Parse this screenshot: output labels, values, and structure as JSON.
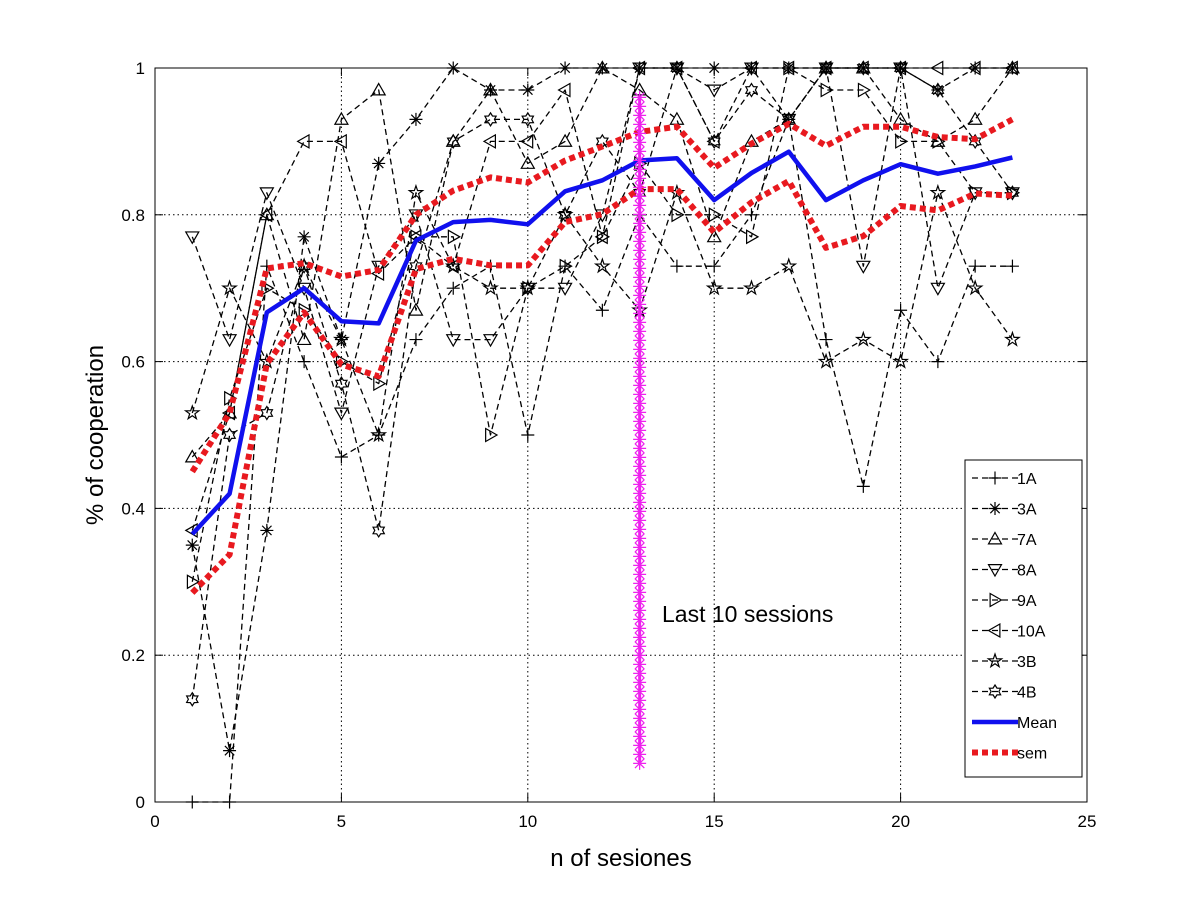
{
  "chart_data": {
    "type": "line",
    "title": "",
    "xlabel": "n of sesiones",
    "ylabel": "% of cooperation",
    "xlim": [
      0,
      25
    ],
    "ylim": [
      0,
      1
    ],
    "xticks": [
      0,
      5,
      10,
      15,
      20,
      25
    ],
    "yticks": [
      0,
      0.2,
      0.4,
      0.6,
      0.8,
      1
    ],
    "xtick_labels": [
      "0",
      "5",
      "10",
      "15",
      "20",
      "25"
    ],
    "ytick_labels": [
      "0",
      "0.2",
      "0.4",
      "0.6",
      "0.8",
      "1"
    ],
    "grid": true,
    "legend_position": "bottom-right",
    "x": [
      1,
      2,
      3,
      4,
      5,
      6,
      7,
      8,
      9,
      10,
      11,
      12,
      13,
      14,
      15,
      16,
      17,
      18,
      19,
      20,
      21,
      22,
      23
    ],
    "series": [
      {
        "name": "1A",
        "marker": "plus",
        "style": "dashed",
        "color": "#000000",
        "values": [
          0,
          0,
          0.73,
          0.6,
          0.47,
          0.5,
          0.63,
          0.7,
          0.73,
          0.5,
          0.73,
          0.67,
          0.8,
          0.73,
          0.73,
          0.8,
          0.93,
          0.63,
          0.43,
          0.67,
          0.6,
          0.73,
          0.73
        ]
      },
      {
        "name": "3A",
        "marker": "asterisk",
        "style": "dashed",
        "color": "#000000",
        "values": [
          0.35,
          0.07,
          0.37,
          0.77,
          0.63,
          0.87,
          0.93,
          1,
          0.97,
          0.97,
          1,
          1,
          1,
          1,
          1,
          1,
          1,
          1,
          1,
          1,
          0.97,
          1,
          1
        ]
      },
      {
        "name": "7A",
        "marker": "triangle-up",
        "style": "dashed",
        "color": "#000000",
        "values": [
          0.47,
          0.53,
          0.8,
          0.63,
          0.93,
          0.97,
          0.67,
          0.9,
          0.97,
          0.87,
          0.9,
          1,
          0.97,
          0.93,
          0.77,
          0.9,
          0.93,
          1,
          1,
          0.93,
          0.9,
          0.93,
          1
        ]
      },
      {
        "name": "8A",
        "marker": "triangle-down",
        "style": "dashed",
        "color": "#000000",
        "values": [
          0.77,
          0.63,
          0.83,
          0.7,
          0.53,
          0.73,
          0.8,
          0.63,
          0.63,
          0.7,
          0.7,
          0.8,
          1,
          1,
          0.97,
          1,
          0.93,
          1,
          0.73,
          1,
          0.7,
          0.83,
          0.83
        ]
      },
      {
        "name": "9A",
        "marker": "triangle-right",
        "style": "dashed",
        "color": "#000000",
        "values": [
          0.3,
          0.55,
          0.7,
          0.67,
          0.6,
          0.57,
          0.77,
          0.77,
          0.5,
          0.7,
          0.73,
          0.77,
          0.87,
          0.8,
          0.8,
          0.77,
          1,
          0.97,
          0.97,
          0.9,
          0.9,
          0.83,
          0.83
        ]
      },
      {
        "name": "10A",
        "marker": "triangle-left",
        "style": "dashed",
        "color": "#000000",
        "values": [
          0.37,
          0.53,
          0.8,
          0.9,
          0.9,
          0.72,
          0.77,
          0.73,
          0.9,
          0.9,
          0.97,
          0.77,
          1,
          1,
          0.9,
          1,
          1,
          1,
          1,
          1,
          1,
          1,
          1
        ]
      },
      {
        "name": "3B",
        "marker": "star",
        "style": "dashed",
        "color": "#000000",
        "values": [
          0.53,
          0.7,
          0.6,
          0.73,
          0.63,
          0.5,
          0.83,
          0.73,
          0.7,
          0.7,
          0.8,
          0.73,
          0.67,
          0.83,
          0.7,
          0.7,
          0.73,
          0.6,
          0.63,
          0.6,
          0.83,
          0.7,
          0.63
        ]
      },
      {
        "name": "4B",
        "marker": "hexagram",
        "style": "dashed",
        "color": "#000000",
        "values": [
          0.14,
          0.5,
          0.53,
          0.73,
          0.57,
          0.37,
          0.73,
          0.9,
          0.93,
          0.93,
          0.8,
          0.9,
          0.83,
          1,
          0.9,
          0.97,
          0.93,
          1,
          1,
          1,
          0.97,
          0.9,
          0.83
        ]
      },
      {
        "name": "Mean",
        "marker": "none",
        "style": "solid",
        "color": "#1010ee",
        "values": [
          0.365,
          0.42,
          0.667,
          0.7,
          0.655,
          0.652,
          0.765,
          0.79,
          0.793,
          0.787,
          0.832,
          0.847,
          0.874,
          0.877,
          0.82,
          0.857,
          0.886,
          0.82,
          0.847,
          0.869,
          0.856,
          0.866,
          0.878
        ]
      },
      {
        "name": "sem",
        "marker": "none",
        "style": "dotted",
        "color": "#e8191f",
        "values": [
          0.45,
          0.53,
          0.727,
          0.734,
          0.716,
          0.725,
          0.8,
          0.833,
          0.851,
          0.844,
          0.874,
          0.893,
          0.913,
          0.92,
          0.864,
          0.897,
          0.924,
          0.894,
          0.92,
          0.92,
          0.906,
          0.903,
          0.93
        ]
      },
      {
        "name": "",
        "marker": "none",
        "style": "dotted",
        "color": "#e8191f",
        "values": [
          0.285,
          0.337,
          0.597,
          0.667,
          0.596,
          0.58,
          0.726,
          0.74,
          0.731,
          0.731,
          0.79,
          0.801,
          0.835,
          0.835,
          0.776,
          0.817,
          0.846,
          0.755,
          0.771,
          0.812,
          0.806,
          0.829,
          0.826
        ]
      }
    ],
    "vertical_marker": {
      "x": 13,
      "y_from": 0.05,
      "y_to": 0.96,
      "color": "#ee22ee"
    },
    "annotations": [
      {
        "text": "Last 10 sessions",
        "x": 13.6,
        "y": 0.245
      }
    ]
  }
}
